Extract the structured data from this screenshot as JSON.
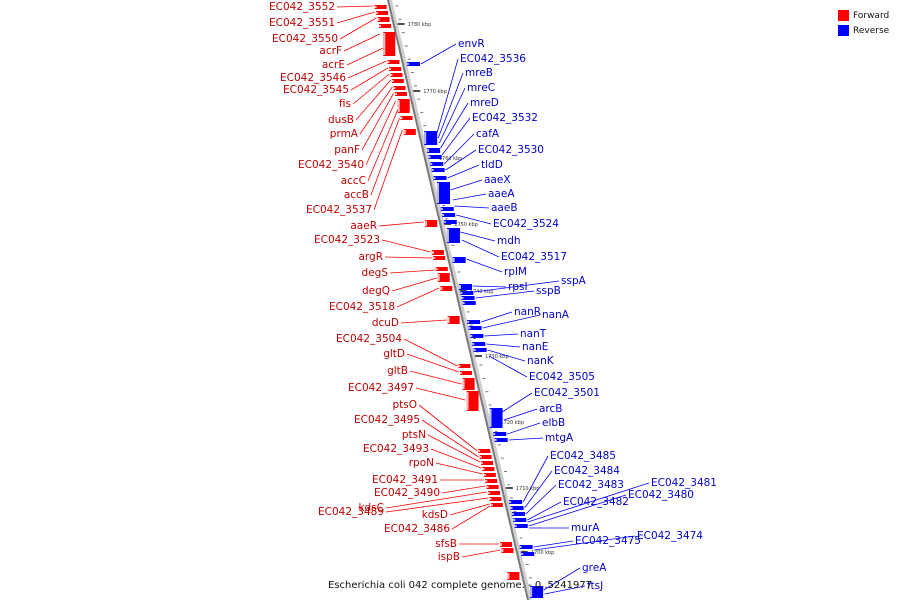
{
  "legend": {
    "forward_label": "Forward",
    "reverse_label": "Reverse",
    "forward_color": "#ff0000",
    "reverse_color": "#0000ff"
  },
  "caption": "Escherichia coli 042 complete genome. - 0..5241977",
  "scale_labels": [
    "1780 kbp",
    "1770 kbp",
    "1760 kbp",
    "1750 kbp",
    "1740 kbp",
    "1730 kbp",
    "1720 kbp",
    "1710 kbp",
    "1700 kbp"
  ],
  "forward_genes": [
    "EC042_3552",
    "EC042_3551",
    "EC042_3550",
    "acrF",
    "acrE",
    "EC042_3546",
    "EC042_3545",
    "fis",
    "dusB",
    "prmA",
    "panF",
    "EC042_3540",
    "accC",
    "accB",
    "EC042_3537",
    "aaeR",
    "EC042_3523",
    "argR",
    "degS",
    "degQ",
    "EC042_3518",
    "dcuD",
    "EC042_3504",
    "gltD",
    "gltB",
    "EC042_3497",
    "ptsO",
    "EC042_3495",
    "ptsN",
    "EC042_3493",
    "rpoN",
    "EC042_3491",
    "EC042_3490",
    "kdsC",
    "EC042_3489",
    "kdsD",
    "EC042_3486",
    "sfsB",
    "ispB"
  ],
  "reverse_genes": [
    "envR",
    "EC042_3536",
    "mreB",
    "mreC",
    "mreD",
    "EC042_3532",
    "cafA",
    "EC042_3530",
    "tldD",
    "aaeX",
    "aaeA",
    "aaeB",
    "EC042_3524",
    "mdh",
    "EC042_3517",
    "rplM",
    "rpsI",
    "sspA",
    "sspB",
    "nanR",
    "nanA",
    "nanT",
    "nanE",
    "nanK",
    "EC042_3505",
    "EC042_3501",
    "arcB",
    "elbB",
    "mtgA",
    "EC042_3485",
    "EC042_3484",
    "EC042_3483",
    "EC042_3482",
    "EC042_3481",
    "EC042_3480",
    "murA",
    "EC042_3475",
    "EC042_3474",
    "greA",
    "ftsJ"
  ]
}
